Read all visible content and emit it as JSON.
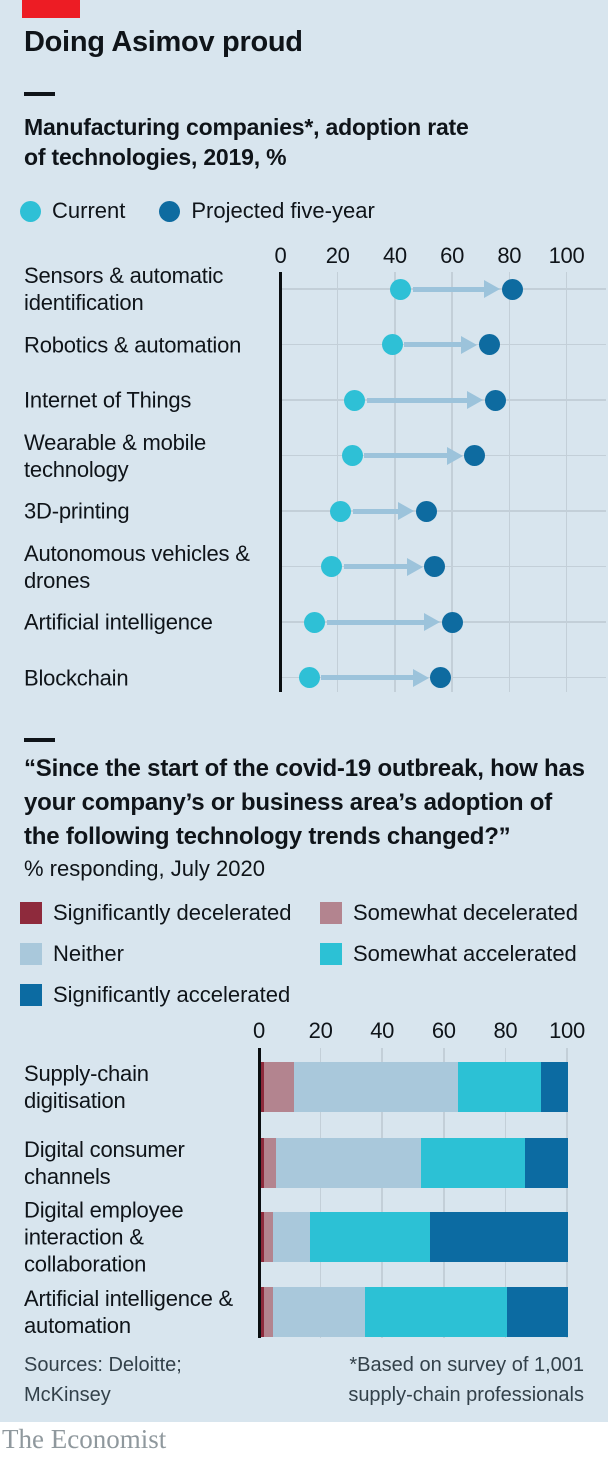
{
  "palette": {
    "background": "#D8E5EE",
    "brand_red": "#ED1C24",
    "text": "#0F1419",
    "muted_text": "#33414A",
    "grid": "#C3CFD8",
    "axis": "#0A0E11",
    "logo_gray": "#8F989D"
  },
  "header": {
    "title": "Doing Asimov proud"
  },
  "chart_data": [
    {
      "type": "scatter",
      "variant": "dumbbell",
      "title": "Manufacturing companies*, adoption rate of technologies, 2019, %",
      "categories": [
        "Sensors & automatic identification",
        "Robotics & automation",
        "Internet of Things",
        "Wearable & mobile technology",
        "3D-printing",
        "Autonomous vehicles & drones",
        "Artificial intelligence",
        "Blockchain"
      ],
      "series": [
        {
          "name": "Current",
          "color": "#2EC0D6",
          "values": [
            42,
            39,
            26,
            25,
            21,
            18,
            12,
            10
          ]
        },
        {
          "name": "Projected five-year",
          "color": "#0E6BA0",
          "values": [
            81,
            73,
            75,
            68,
            51,
            54,
            60,
            56
          ]
        }
      ],
      "arrow_color": "#9CC3DB",
      "xlim": [
        0,
        100
      ],
      "xticks": [
        0,
        20,
        40,
        60,
        80,
        100
      ],
      "grid": true,
      "legend_position": "top"
    },
    {
      "type": "bar",
      "variant": "stacked-horizontal",
      "title": "“Since the start of the covid-19 outbreak, how has your company’s or business area’s adoption of the following technology trends changed?”",
      "subtitle": "% responding, July 2020",
      "categories": [
        "Supply-chain digitisation",
        "Digital consumer channels",
        "Digital employee interaction & collaboration",
        "Artificial intelligence & automation"
      ],
      "series": [
        {
          "name": "Significantly decelerated",
          "color": "#8E2A3C",
          "values": [
            1,
            1,
            1,
            1
          ]
        },
        {
          "name": "Somewhat decelerated",
          "color": "#B3848F",
          "values": [
            10,
            4,
            3,
            3
          ]
        },
        {
          "name": "Neither",
          "color": "#A9C8DB",
          "values": [
            53,
            47,
            12,
            30
          ]
        },
        {
          "name": "Somewhat accelerated",
          "color": "#2CC1D5",
          "values": [
            27,
            34,
            39,
            46
          ]
        },
        {
          "name": "Significantly accelerated",
          "color": "#0C6BA2",
          "values": [
            9,
            14,
            45,
            20
          ]
        }
      ],
      "xlim": [
        0,
        100
      ],
      "xticks": [
        0,
        20,
        40,
        60,
        80,
        100
      ],
      "grid": true,
      "legend_position": "top"
    }
  ],
  "footer": {
    "sources": "Sources: Deloitte; McKinsey",
    "note": "*Based on survey of 1,001 supply-chain professionals"
  },
  "publication": "The Economist"
}
